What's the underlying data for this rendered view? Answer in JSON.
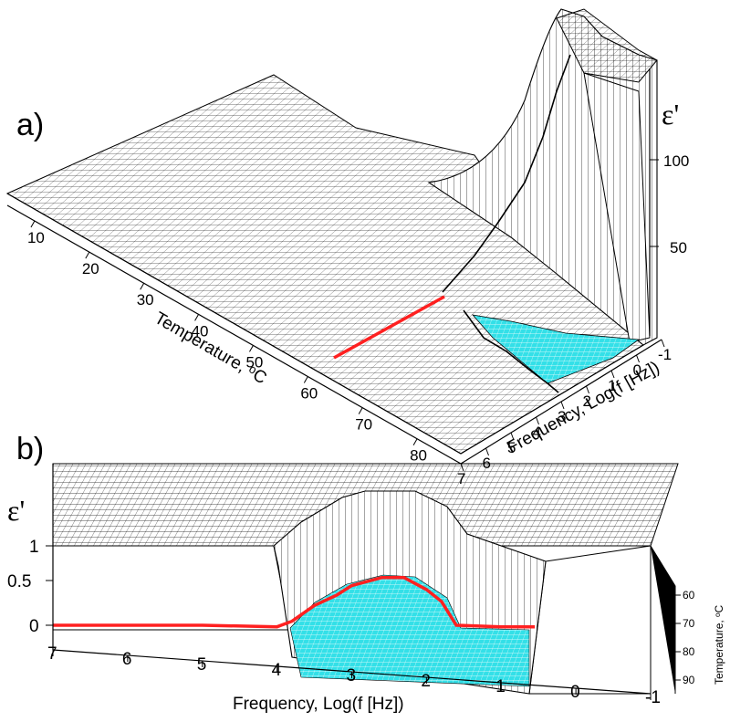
{
  "chart_data": [
    {
      "panel": "a)",
      "type": "surface3d",
      "zlabel": "ε'",
      "xlabel": "Temperature, ᵒC",
      "ylabel": "Frequency, Log(f [Hz])",
      "x_ticks": [
        "10",
        "20",
        "30",
        "40",
        "50",
        "60",
        "70",
        "80"
      ],
      "y_ticks": [
        "7",
        "6",
        "5",
        "4",
        "3",
        "2",
        "1",
        "0",
        "-1"
      ],
      "z_ticks": [
        "50",
        "100"
      ],
      "colors": {
        "surface": "#ffffff",
        "mesh": "#000000",
        "highlight_line": "#ff2020",
        "region": "#33e0e8"
      }
    },
    {
      "panel": "b)",
      "type": "surface3d",
      "zlabel": "ε'",
      "xlabel": "Frequency, Log(f [Hz])",
      "ylabel": "Temperature, ᵒC",
      "x_ticks": [
        "7",
        "6",
        "5",
        "4",
        "3",
        "2",
        "1",
        "0",
        "-1"
      ],
      "y_ticks": [
        "60",
        "70",
        "80",
        "90"
      ],
      "z_ticks": [
        "0",
        "0.5",
        "1"
      ],
      "red_line": {
        "x": [
          7,
          6,
          5,
          4,
          3.8,
          3.5,
          3.2,
          3.0,
          2.6,
          2.3,
          2.0,
          1.8,
          1.6,
          1.0,
          0.55
        ],
        "y": [
          0.0,
          0.0,
          0.0,
          -0.02,
          0.05,
          0.25,
          0.38,
          0.5,
          0.6,
          0.6,
          0.45,
          0.3,
          0.0,
          -0.02,
          -0.02
        ]
      },
      "colors": {
        "surface": "#ffffff",
        "mesh": "#000000",
        "highlight_line": "#ff2020",
        "region": "#33e0e8"
      }
    }
  ]
}
